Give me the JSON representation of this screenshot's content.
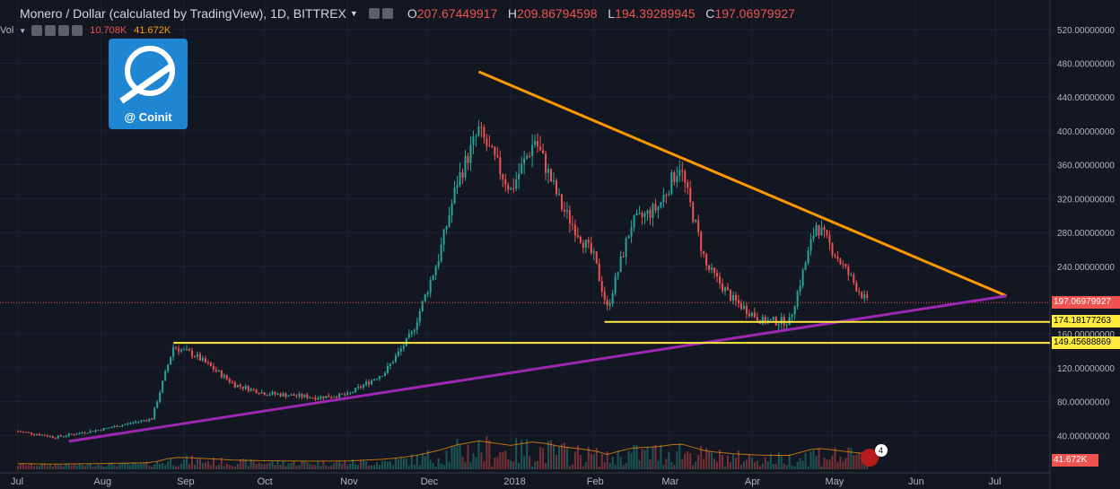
{
  "header": {
    "icon": "candles-icon",
    "title": "Monero / Dollar (calculated by TradingView), 1D, BITTREX",
    "open_label": "O",
    "open": "207.67449917",
    "high_label": "H",
    "high": "209.86794598",
    "low_label": "L",
    "low": "194.39289945",
    "close_label": "C",
    "close": "197.06979927"
  },
  "volume_legend": {
    "label": "Vol",
    "v1": "10.708K",
    "v2": "41.672K"
  },
  "watermark": {
    "brand": "@ Coinit",
    "text_logo": "Coinit"
  },
  "price_scale": {
    "ticks": [
      "520.00000000",
      "480.00000000",
      "440.00000000",
      "400.00000000",
      "360.00000000",
      "320.00000000",
      "280.00000000",
      "240.00000000",
      "160.00000000",
      "120.00000000",
      "80.00000000",
      "40.00000000"
    ]
  },
  "price_labels": {
    "current": "197.06979927",
    "support1": "174.18177263",
    "support2": "149.45688869",
    "volume": "41.672K"
  },
  "time_scale": {
    "ticks": [
      "Jul",
      "Aug",
      "Sep",
      "Oct",
      "Nov",
      "Dec",
      "2018",
      "Feb",
      "Mar",
      "Apr",
      "May",
      "Jun",
      "Jul"
    ]
  },
  "notification": {
    "count": "4"
  },
  "colors": {
    "up": "#26a69a",
    "down": "#ef5350",
    "trend_top": "#ff9800",
    "trend_bottom": "#9c27b0",
    "support": "#ffeb3b"
  },
  "chart_data": {
    "type": "candlestick",
    "x": [
      "2017-07-01",
      "2017-07-15",
      "2017-08-01",
      "2017-08-20",
      "2017-08-28",
      "2017-09-05",
      "2017-09-20",
      "2017-10-01",
      "2017-10-20",
      "2017-11-01",
      "2017-11-15",
      "2017-11-25",
      "2017-12-05",
      "2017-12-12",
      "2017-12-20",
      "2018-01-01",
      "2018-01-10",
      "2018-01-20",
      "2018-02-01",
      "2018-02-06",
      "2018-02-15",
      "2018-02-25",
      "2018-03-05",
      "2018-03-15",
      "2018-03-25",
      "2018-04-05",
      "2018-04-15",
      "2018-04-25",
      "2018-05-05",
      "2018-05-14"
    ],
    "close": [
      45,
      38,
      47,
      60,
      145,
      135,
      100,
      90,
      85,
      88,
      115,
      160,
      250,
      340,
      400,
      330,
      390,
      310,
      250,
      190,
      290,
      310,
      360,
      240,
      200,
      175,
      175,
      290,
      240,
      197
    ],
    "ylim": [
      0,
      540
    ],
    "drawings": [
      {
        "type": "trendline",
        "name": "upper",
        "from": [
          "2017-12-20",
          470
        ],
        "to": [
          "2018-07-05",
          205
        ]
      },
      {
        "type": "trendline",
        "name": "lower",
        "from": [
          "2017-07-20",
          33
        ],
        "to": [
          "2018-07-05",
          205
        ]
      },
      {
        "type": "hline",
        "value": 174.18177263,
        "from": "2018-02-05"
      },
      {
        "type": "hline",
        "value": 149.45688869,
        "from": "2017-08-28"
      }
    ]
  }
}
